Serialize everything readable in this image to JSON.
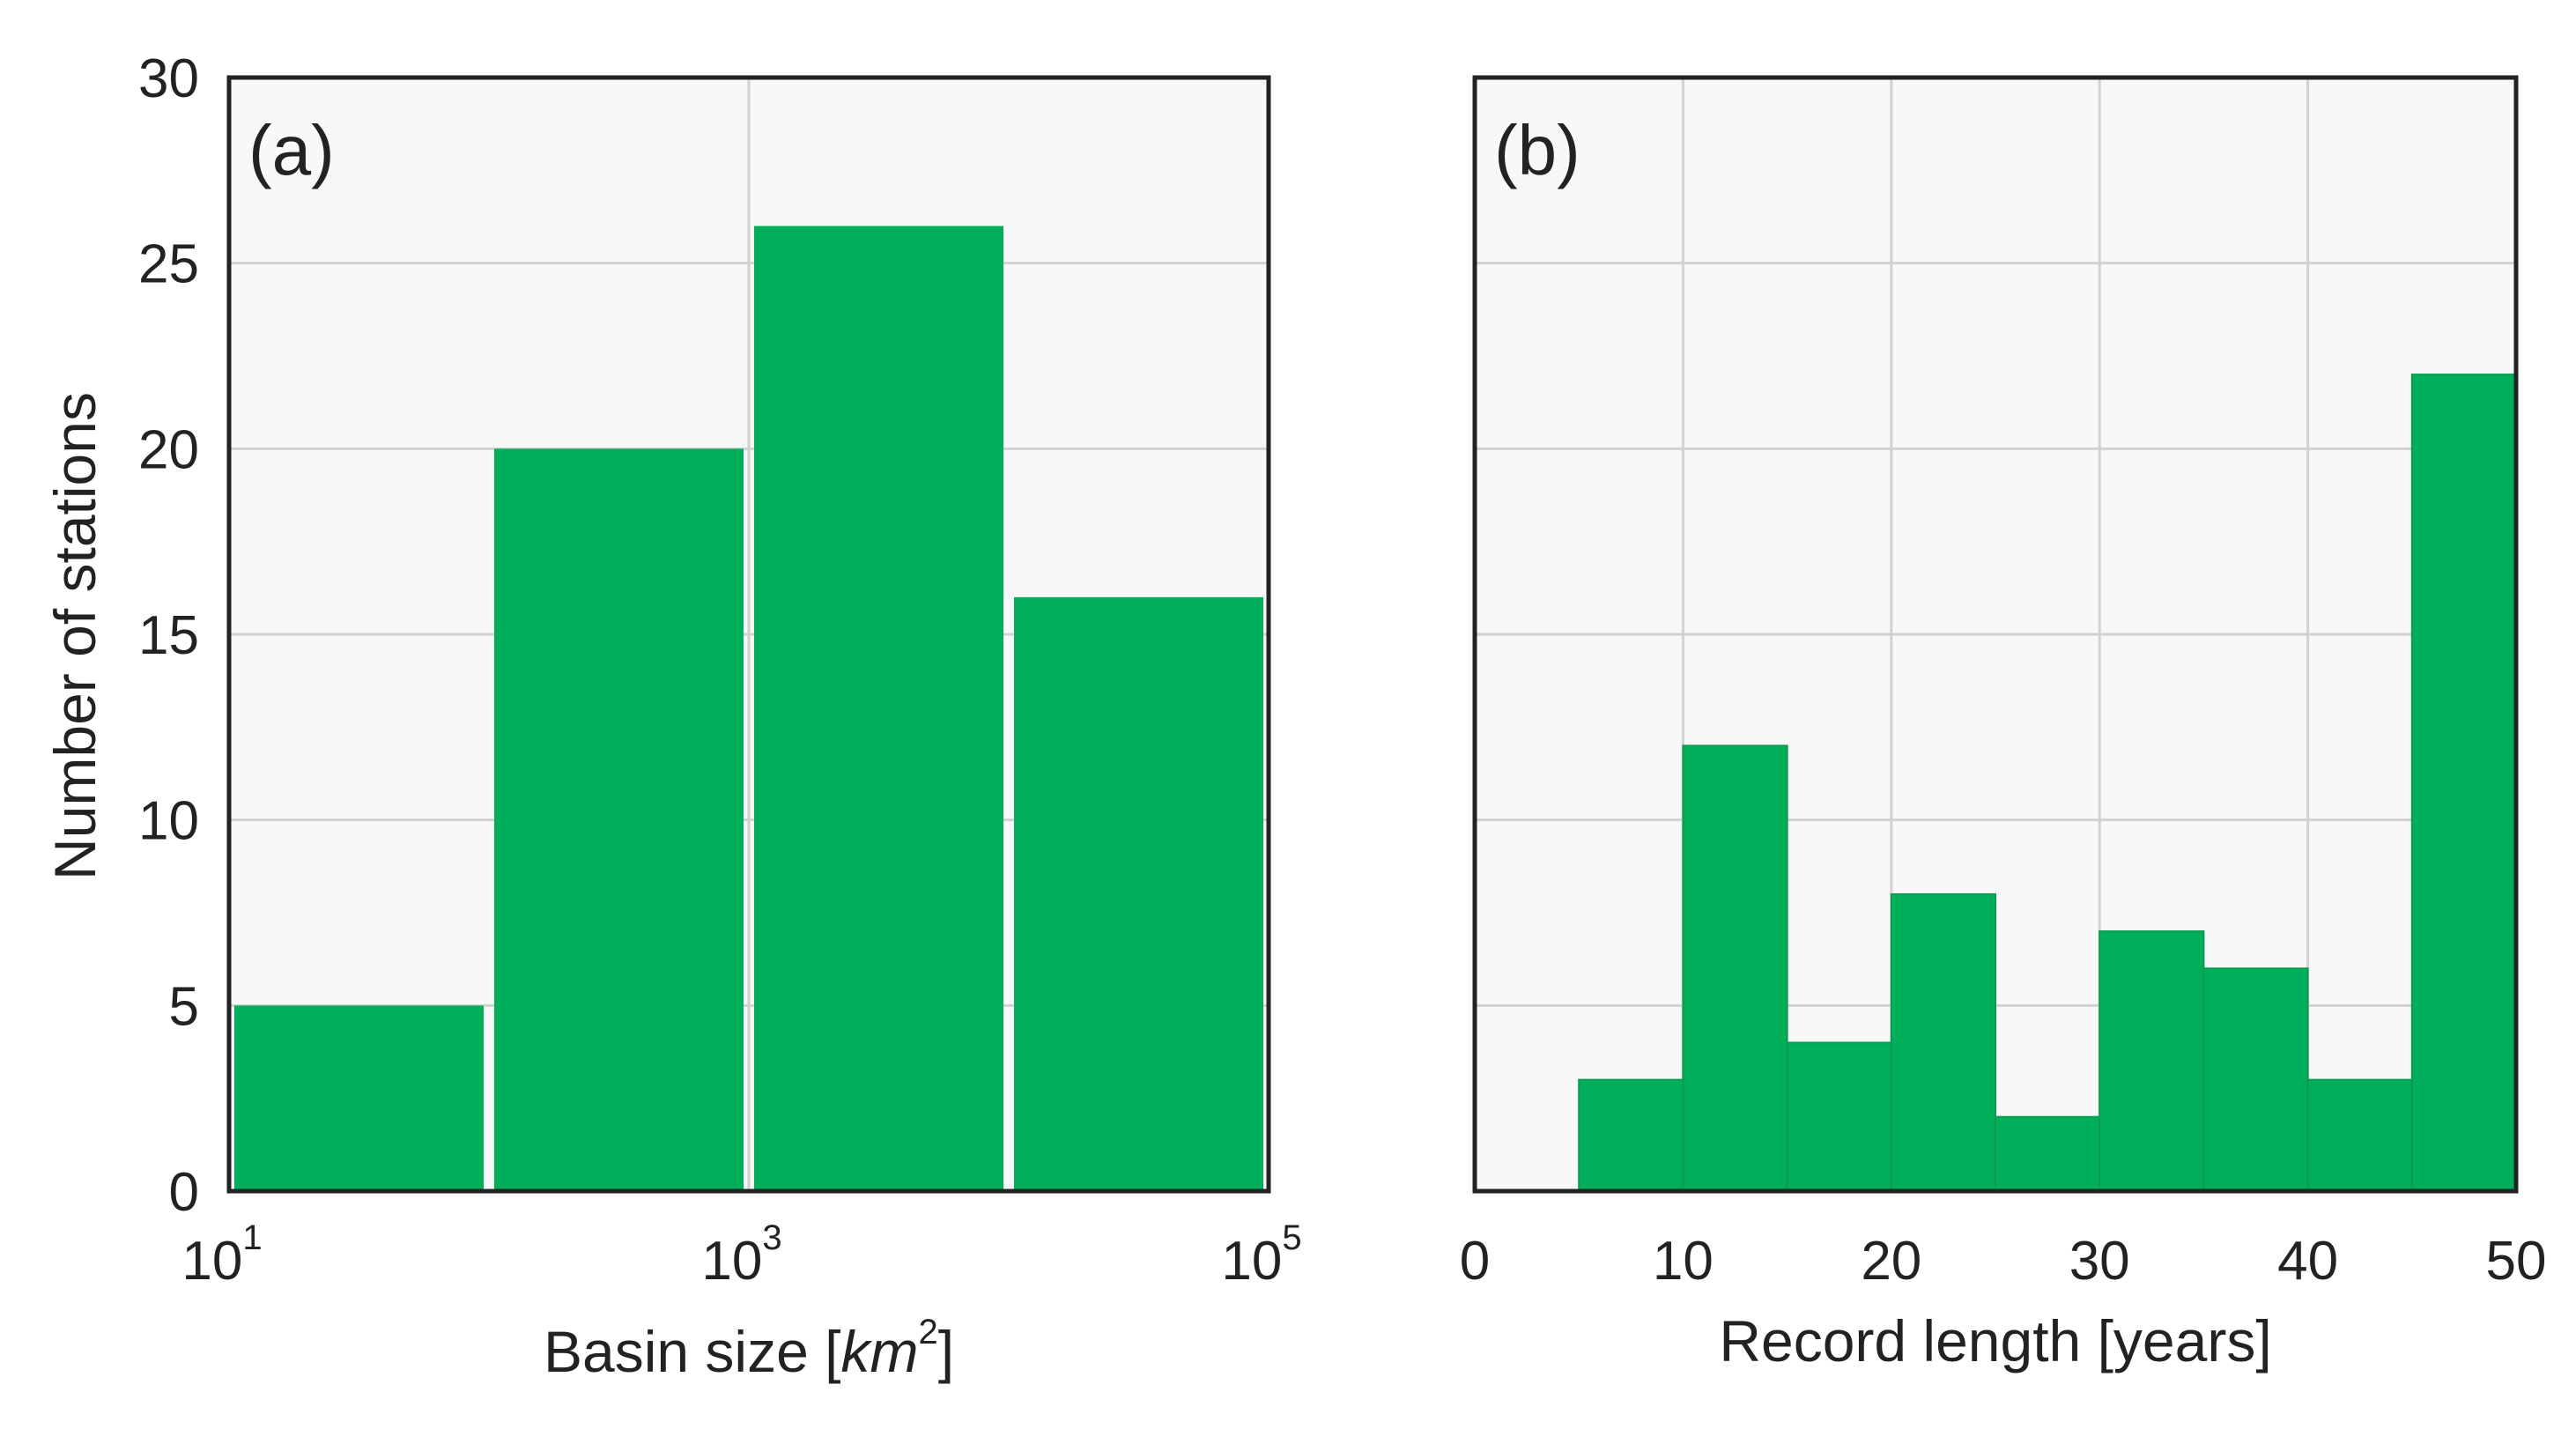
{
  "colors": {
    "bar": "#00af5a",
    "bar_edge": "#0a9a50",
    "plot_background": "#f8f8f8",
    "grid": "#d2d2d2",
    "frame": "#222222",
    "text": "#222222"
  },
  "figure": {
    "ylabel": "Number of stations"
  },
  "chart_data": [
    {
      "type": "bar",
      "panel_label": "(a)",
      "xlabel": "Basin size [km²]",
      "xlabel_parts": {
        "prefix": "Basin size [",
        "unit": "km",
        "exponent": "2",
        "suffix": "]"
      },
      "x_scale": "log",
      "xlim": [
        10,
        100000
      ],
      "ylim": [
        0,
        30
      ],
      "grid": true,
      "bin_edges": [
        10,
        100,
        1000,
        10000,
        100000
      ],
      "values": [
        5,
        20,
        26,
        16
      ],
      "x_ticks": [
        {
          "value": 10,
          "base": "10",
          "exponent": "1"
        },
        {
          "value": 1000,
          "base": "10",
          "exponent": "3"
        },
        {
          "value": 100000,
          "base": "10",
          "exponent": "5"
        }
      ],
      "y_ticks": [
        "0",
        "5",
        "10",
        "15",
        "20",
        "25",
        "30"
      ]
    },
    {
      "type": "bar",
      "panel_label": "(b)",
      "xlabel": "Record length [years]",
      "x_scale": "linear",
      "xlim": [
        0,
        50
      ],
      "ylim": [
        0,
        30
      ],
      "grid": true,
      "bin_edges": [
        5,
        10,
        15,
        20,
        25,
        30,
        35,
        40,
        45,
        50
      ],
      "values": [
        3,
        12,
        4,
        8,
        2,
        7,
        6,
        3,
        22
      ],
      "x_ticks": [
        "0",
        "10",
        "20",
        "30",
        "40",
        "50"
      ]
    }
  ]
}
